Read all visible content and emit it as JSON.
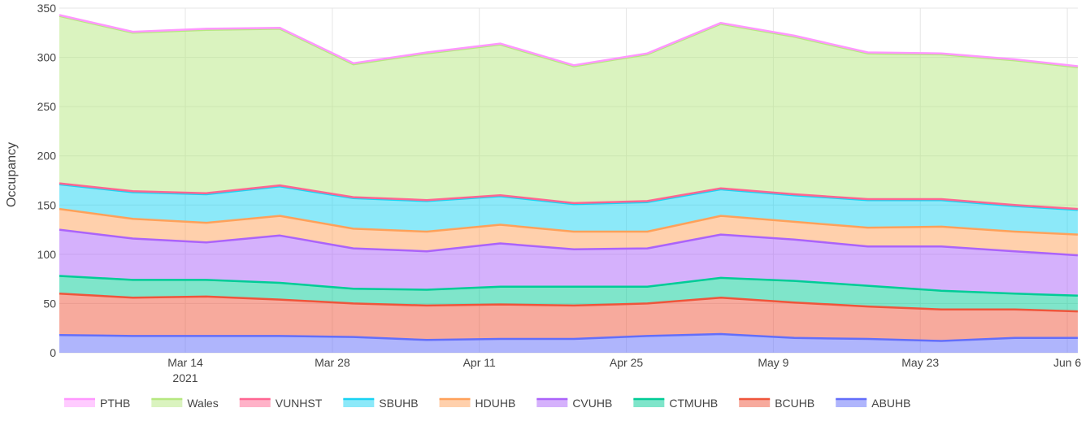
{
  "chart_data": {
    "type": "area",
    "stacked": true,
    "ylabel": "Occupancy",
    "ylim": [
      0,
      350
    ],
    "yticks": [
      0,
      50,
      100,
      150,
      200,
      250,
      300,
      350
    ],
    "xlim": [
      "2021-03-02",
      "2021-06-07"
    ],
    "xticks": [
      {
        "date": "2021-03-14",
        "label": "Mar 14",
        "sublabel": "2021"
      },
      {
        "date": "2021-03-28",
        "label": "Mar 28",
        "sublabel": ""
      },
      {
        "date": "2021-04-11",
        "label": "Apr 11",
        "sublabel": ""
      },
      {
        "date": "2021-04-25",
        "label": "Apr 25",
        "sublabel": ""
      },
      {
        "date": "2021-05-09",
        "label": "May 9",
        "sublabel": ""
      },
      {
        "date": "2021-05-23",
        "label": "May 23",
        "sublabel": ""
      },
      {
        "date": "2021-06-06",
        "label": "Jun 6",
        "sublabel": ""
      }
    ],
    "grid": true,
    "legend_position": "bottom",
    "dates": [
      "2021-03-02",
      "2021-03-09",
      "2021-03-16",
      "2021-03-23",
      "2021-03-30",
      "2021-04-06",
      "2021-04-13",
      "2021-04-20",
      "2021-04-27",
      "2021-05-04",
      "2021-05-11",
      "2021-05-18",
      "2021-05-25",
      "2021-06-01",
      "2021-06-07"
    ],
    "series": [
      {
        "name": "ABUHB",
        "fill": "rgba(110,120,250,0.55)",
        "line": "#636efa",
        "values": [
          18,
          17,
          17,
          17,
          16,
          13,
          14,
          14,
          17,
          19,
          15,
          14,
          12,
          15,
          15
        ]
      },
      {
        "name": "BCUHB",
        "fill": "rgba(239,85,59,0.5)",
        "line": "#ef553b",
        "values": [
          42,
          39,
          40,
          37,
          34,
          35,
          35,
          34,
          33,
          37,
          36,
          33,
          32,
          29,
          27
        ]
      },
      {
        "name": "CTMUHB",
        "fill": "rgba(0,204,150,0.5)",
        "line": "#00cc96",
        "values": [
          18,
          18,
          17,
          17,
          15,
          16,
          18,
          19,
          17,
          20,
          22,
          21,
          19,
          16,
          16
        ]
      },
      {
        "name": "CVUHB",
        "fill": "rgba(171,99,250,0.5)",
        "line": "#ab63fa",
        "values": [
          47,
          42,
          38,
          48,
          41,
          39,
          44,
          38,
          39,
          44,
          42,
          40,
          45,
          43,
          41
        ]
      },
      {
        "name": "HDUHB",
        "fill": "rgba(255,161,90,0.5)",
        "line": "#ffa15a",
        "values": [
          21,
          20,
          20,
          20,
          20,
          20,
          19,
          18,
          17,
          19,
          18,
          19,
          20,
          20,
          21
        ]
      },
      {
        "name": "SBUHB",
        "fill": "rgba(25,211,243,0.5)",
        "line": "#19d3f3",
        "values": [
          25,
          27,
          29,
          30,
          31,
          31,
          29,
          28,
          30,
          27,
          27,
          28,
          27,
          26,
          25
        ]
      },
      {
        "name": "VUNHST",
        "fill": "rgba(255,102,146,0.5)",
        "line": "#ff6692",
        "values": [
          1,
          1,
          1,
          1,
          1,
          1,
          1,
          1,
          1,
          1,
          1,
          1,
          1,
          1,
          1
        ]
      },
      {
        "name": "Wales",
        "fill": "rgba(182,232,128,0.5)",
        "line": "#b6e880",
        "values": [
          170,
          161,
          166,
          159,
          135,
          149,
          153,
          139,
          149,
          167,
          160,
          148,
          147,
          147,
          144
        ]
      },
      {
        "name": "PTHB",
        "fill": "rgba(255,151,255,0.5)",
        "line": "#ff97ff",
        "values": [
          1,
          1,
          1,
          1,
          1,
          1,
          1,
          1,
          1,
          1,
          1,
          1,
          1,
          1,
          1
        ]
      }
    ],
    "legend_order": [
      "PTHB",
      "Wales",
      "VUNHST",
      "SBUHB",
      "HDUHB",
      "CVUHB",
      "CTMUHB",
      "BCUHB",
      "ABUHB"
    ]
  }
}
